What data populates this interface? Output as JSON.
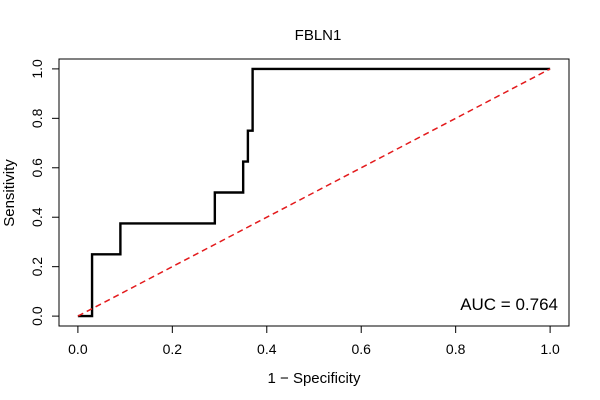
{
  "chart_data": {
    "type": "line",
    "title": "FBLN1",
    "xlabel": "1 − Specificity",
    "ylabel": "Sensitivity",
    "xlim": [
      -0.04,
      1.04
    ],
    "ylim": [
      -0.04,
      1.04
    ],
    "x_ticks": [
      "0.0",
      "0.2",
      "0.4",
      "0.6",
      "0.8",
      "1.0"
    ],
    "y_ticks": [
      "0.0",
      "0.2",
      "0.4",
      "0.6",
      "0.8",
      "1.0"
    ],
    "annotation": "AUC = 0.764",
    "grid": false,
    "series": [
      {
        "color": "#000000",
        "style": "solid",
        "points": [
          [
            0.0,
            0.0
          ],
          [
            0.03,
            0.0
          ],
          [
            0.03,
            0.25
          ],
          [
            0.09,
            0.25
          ],
          [
            0.09,
            0.375
          ],
          [
            0.29,
            0.375
          ],
          [
            0.29,
            0.5
          ],
          [
            0.35,
            0.5
          ],
          [
            0.35,
            0.625
          ],
          [
            0.36,
            0.625
          ],
          [
            0.36,
            0.75
          ],
          [
            0.37,
            0.75
          ],
          [
            0.37,
            1.0
          ],
          [
            1.0,
            1.0
          ]
        ]
      },
      {
        "color": "#e31a1c",
        "style": "dashed",
        "points": [
          [
            0.0,
            0.0
          ],
          [
            1.0,
            1.0
          ]
        ]
      }
    ]
  }
}
